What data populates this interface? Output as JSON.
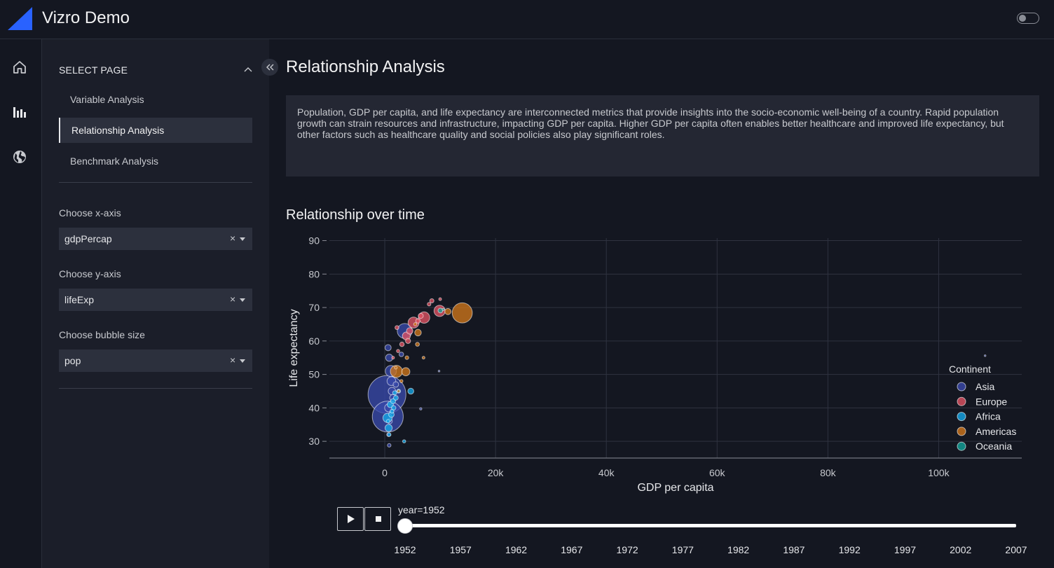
{
  "header": {
    "title": "Vizro Demo"
  },
  "nav": {
    "icons": [
      "home-icon",
      "bar-chart-icon",
      "globe-icon"
    ]
  },
  "sidebar": {
    "section_title": "SELECT PAGE",
    "pages": [
      {
        "label": "Variable Analysis",
        "active": false
      },
      {
        "label": "Relationship Analysis",
        "active": true
      },
      {
        "label": "Benchmark Analysis",
        "active": false
      }
    ],
    "controls": [
      {
        "label": "Choose x-axis",
        "value": "gdpPercap"
      },
      {
        "label": "Choose y-axis",
        "value": "lifeExp"
      },
      {
        "label": "Choose bubble size",
        "value": "pop"
      }
    ],
    "clear_glyph": "×"
  },
  "main": {
    "page_title": "Relationship Analysis",
    "description": "Population, GDP per capita, and life expectancy are interconnected metrics that provide insights into the socio-economic well-being of a country. Rapid population growth can strain resources and infrastructure, impacting GDP per capita. Higher GDP per capita often enables better healthcare and improved life expectancy, but other factors such as healthcare quality and social policies also play significant roles.",
    "chart_title": "Relationship over time"
  },
  "slider": {
    "label": "year=1952",
    "ticks": [
      "1952",
      "1957",
      "1962",
      "1967",
      "1972",
      "1977",
      "1982",
      "1987",
      "1992",
      "1997",
      "2002",
      "2007"
    ],
    "value": 1952
  },
  "colors": {
    "Asia": "#3949ab",
    "Europe": "#e05263",
    "Africa": "#14a8e8",
    "Americas": "#d0761a",
    "Oceania": "#12a39a",
    "accent": "#2962ff"
  },
  "chart_data": {
    "type": "scatter",
    "xlabel": "GDP per capita",
    "ylabel": "Life expectancy",
    "xlim": [
      -10000,
      115000
    ],
    "ylim": [
      25,
      92
    ],
    "xticks": [
      0,
      20000,
      40000,
      60000,
      80000,
      100000
    ],
    "xtick_labels": [
      "0",
      "20k",
      "40k",
      "60k",
      "80k",
      "100k"
    ],
    "yticks": [
      30,
      40,
      50,
      60,
      70,
      80,
      90
    ],
    "legend": {
      "title": "Continent",
      "position": "right",
      "entries": [
        "Asia",
        "Europe",
        "Africa",
        "Americas",
        "Oceania"
      ]
    },
    "series": [
      {
        "name": "Asia",
        "points": [
          [
            400,
            44,
            556
          ],
          [
            546,
            37.4,
            372
          ],
          [
            3600,
            63,
            86
          ],
          [
            1100,
            51,
            48
          ],
          [
            800,
            55,
            20
          ],
          [
            600,
            58,
            15
          ],
          [
            1200,
            48,
            30
          ],
          [
            700,
            40,
            25
          ],
          [
            1300,
            45,
            22
          ],
          [
            900,
            36,
            10
          ],
          [
            800,
            28.8,
            5
          ],
          [
            6500,
            39.7,
            2
          ],
          [
            1500,
            43,
            18
          ],
          [
            2000,
            47,
            12
          ],
          [
            3000,
            56,
            8
          ],
          [
            700,
            32,
            6
          ],
          [
            108382,
            55.6,
            0.5
          ],
          [
            9800,
            51,
            1
          ]
        ]
      },
      {
        "name": "Europe",
        "points": [
          [
            7100,
            67,
            50
          ],
          [
            9900,
            69,
            49
          ],
          [
            5200,
            65.5,
            47
          ],
          [
            3900,
            61.5,
            25
          ],
          [
            8500,
            72,
            7
          ],
          [
            10000,
            72.5,
            3
          ],
          [
            4200,
            60,
            10
          ],
          [
            3100,
            59,
            8
          ],
          [
            2200,
            64,
            6
          ],
          [
            6000,
            66,
            8
          ],
          [
            8000,
            71,
            5
          ],
          [
            6500,
            67.5,
            10
          ],
          [
            4500,
            63,
            16
          ],
          [
            2400,
            57,
            4
          ],
          [
            1500,
            55,
            3
          ]
        ]
      },
      {
        "name": "Africa",
        "points": [
          [
            500,
            37,
            33
          ],
          [
            700,
            34,
            20
          ],
          [
            1000,
            41,
            15
          ],
          [
            1500,
            42,
            10
          ],
          [
            1200,
            38,
            12
          ],
          [
            1600,
            40,
            8
          ],
          [
            2000,
            43,
            9
          ],
          [
            4700,
            45.0,
            14
          ],
          [
            2500,
            45,
            6
          ],
          [
            800,
            32,
            5
          ],
          [
            3500,
            30,
            4
          ],
          [
            1800,
            44.5,
            7
          ],
          [
            1300,
            39,
            6
          ],
          [
            600,
            36,
            5
          ]
        ]
      },
      {
        "name": "Americas",
        "points": [
          [
            13990,
            68.4,
            157
          ],
          [
            2100,
            50.9,
            57
          ],
          [
            3800,
            50.8,
            26
          ],
          [
            6000,
            62.5,
            17
          ],
          [
            5900,
            59,
            6
          ],
          [
            11400,
            68.8,
            15
          ],
          [
            4000,
            55,
            5
          ],
          [
            2000,
            52,
            3
          ],
          [
            3000,
            48,
            4
          ],
          [
            7000,
            55,
            3
          ],
          [
            2500,
            45,
            3
          ],
          [
            5500,
            65,
            4
          ]
        ]
      },
      {
        "name": "Oceania",
        "points": [
          [
            10040,
            69.1,
            8.7
          ],
          [
            10556,
            69.4,
            1.9
          ]
        ]
      }
    ]
  }
}
